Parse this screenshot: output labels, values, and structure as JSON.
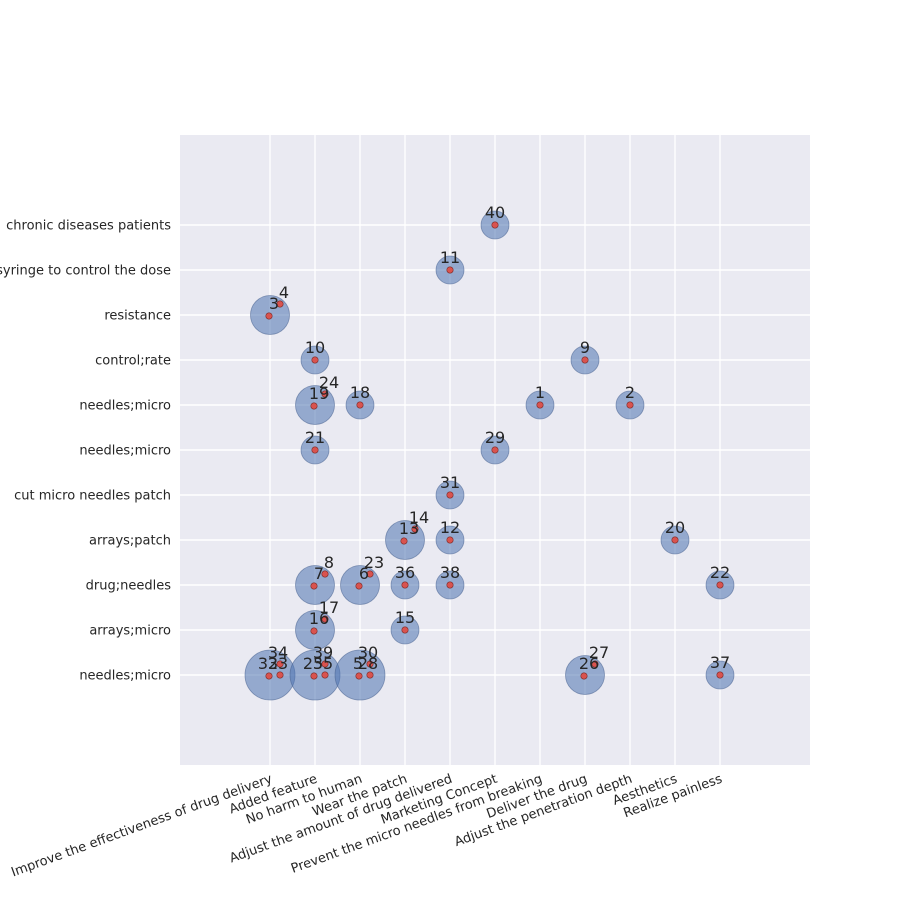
{
  "chart_data": {
    "type": "scatter",
    "title": "",
    "xlabel": "",
    "ylabel": "",
    "grid": true,
    "categories_x": [
      "Improve the effectiveness of drug delivery",
      "Added feature",
      "No harm to human",
      "Wear the patch",
      "Adjust the amount of drug delivered",
      "Marketing Concept",
      "Prevent the micro needles from breaking",
      "Deliver the drug",
      "Adjust the penetration depth",
      "Aesthetics",
      "Realize painless"
    ],
    "categories_y": [
      "needles;micro",
      "arrays;micro",
      "drug;needles",
      "arrays;patch",
      "cut micro needles patch",
      "needles;micro",
      "needles;micro",
      "control;rate",
      "resistance",
      "syringe to control the dose",
      "chronic diseases patients"
    ],
    "bubbles": [
      {
        "x": 0,
        "y": 8,
        "count": 2,
        "labels": [
          "3",
          "4"
        ]
      },
      {
        "x": 0,
        "y": 0,
        "count": 3,
        "labels": [
          "32",
          "33",
          "34"
        ]
      },
      {
        "x": 1,
        "y": 7,
        "count": 1,
        "labels": [
          "10"
        ]
      },
      {
        "x": 1,
        "y": 6,
        "count": 2,
        "labels": [
          "19",
          "24"
        ]
      },
      {
        "x": 1,
        "y": 5,
        "count": 1,
        "labels": [
          "21"
        ]
      },
      {
        "x": 1,
        "y": 2,
        "count": 2,
        "labels": [
          "7",
          "8"
        ]
      },
      {
        "x": 1,
        "y": 1,
        "count": 2,
        "labels": [
          "16",
          "17"
        ]
      },
      {
        "x": 1,
        "y": 0,
        "count": 3,
        "labels": [
          "25",
          "35",
          "39"
        ]
      },
      {
        "x": 2,
        "y": 6,
        "count": 1,
        "labels": [
          "18"
        ]
      },
      {
        "x": 2,
        "y": 2,
        "count": 2,
        "labels": [
          "6",
          "23"
        ]
      },
      {
        "x": 2,
        "y": 0,
        "count": 3,
        "labels": [
          "5",
          "28",
          "30"
        ]
      },
      {
        "x": 3,
        "y": 3,
        "count": 2,
        "labels": [
          "13",
          "14"
        ]
      },
      {
        "x": 3,
        "y": 2,
        "count": 1,
        "labels": [
          "36"
        ]
      },
      {
        "x": 3,
        "y": 1,
        "count": 1,
        "labels": [
          "15"
        ]
      },
      {
        "x": 4,
        "y": 9,
        "count": 1,
        "labels": [
          "11"
        ]
      },
      {
        "x": 4,
        "y": 4,
        "count": 1,
        "labels": [
          "31"
        ]
      },
      {
        "x": 4,
        "y": 3,
        "count": 1,
        "labels": [
          "12"
        ]
      },
      {
        "x": 4,
        "y": 2,
        "count": 1,
        "labels": [
          "38"
        ]
      },
      {
        "x": 5,
        "y": 10,
        "count": 1,
        "labels": [
          "40"
        ]
      },
      {
        "x": 5,
        "y": 5,
        "count": 1,
        "labels": [
          "29"
        ]
      },
      {
        "x": 6,
        "y": 6,
        "count": 1,
        "labels": [
          "1"
        ]
      },
      {
        "x": 7,
        "y": 7,
        "count": 1,
        "labels": [
          "9"
        ]
      },
      {
        "x": 7,
        "y": 0,
        "count": 2,
        "labels": [
          "26",
          "27"
        ]
      },
      {
        "x": 8,
        "y": 6,
        "count": 1,
        "labels": [
          "2"
        ]
      },
      {
        "x": 9,
        "y": 3,
        "count": 1,
        "labels": [
          "20"
        ]
      },
      {
        "x": 10,
        "y": 2,
        "count": 1,
        "labels": [
          "22"
        ]
      },
      {
        "x": 10,
        "y": 0,
        "count": 1,
        "labels": [
          "37"
        ]
      }
    ],
    "colors": {
      "background": "#eaeaf2",
      "grid": "#ffffff",
      "bubble": "#4c72b0",
      "point": "#d9534f",
      "text": "#262626"
    }
  }
}
